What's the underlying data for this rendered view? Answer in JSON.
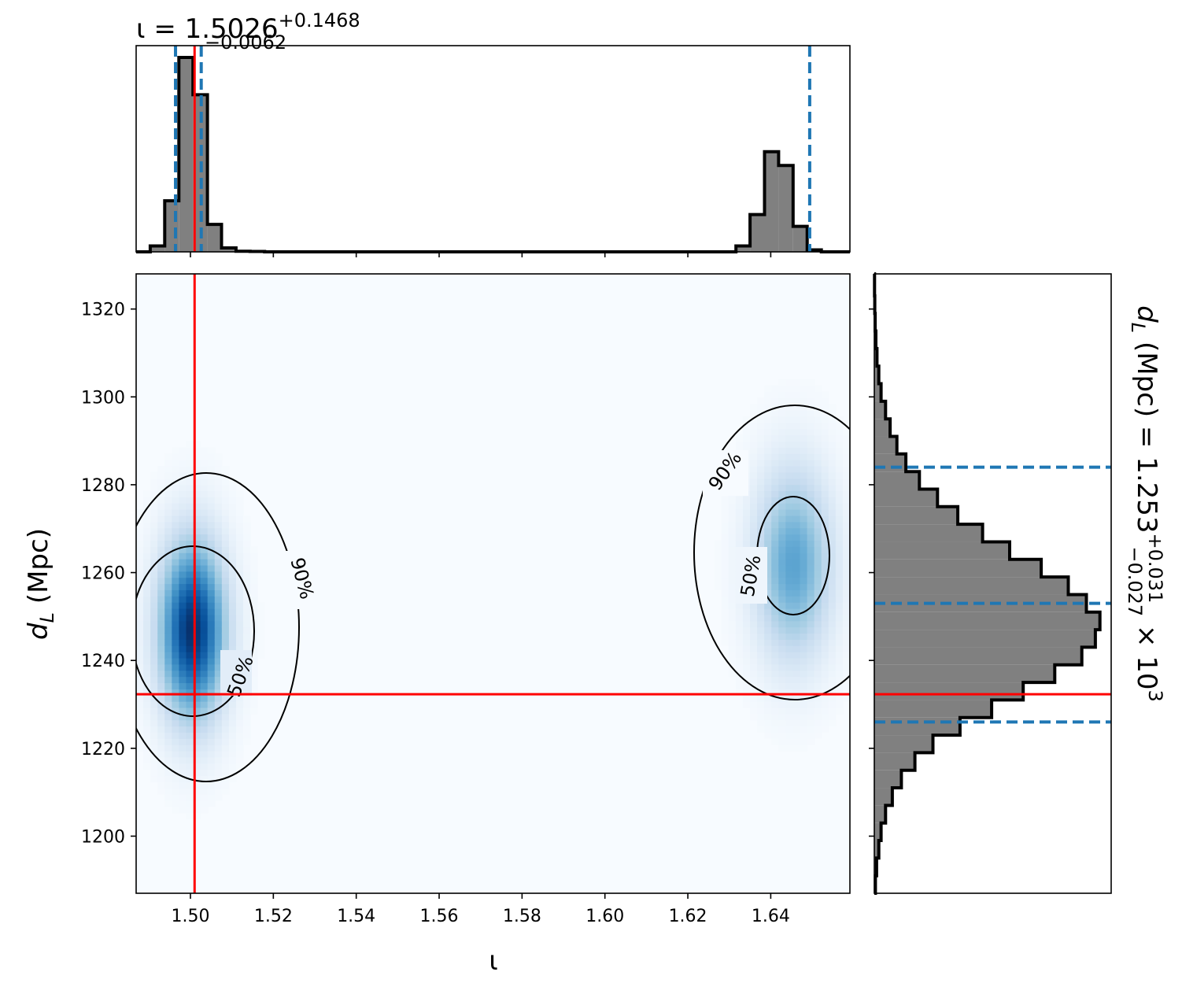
{
  "chart_data": {
    "type": "corner",
    "parameters": [
      {
        "name": "iota",
        "label_symbol": "ι",
        "label": "ι",
        "range": [
          1.4869,
          1.6591
        ]
      },
      {
        "name": "d_L",
        "label_base": "d",
        "label_sub": "L",
        "label_unit": " (Mpc)",
        "range": [
          1187,
          1328
        ]
      }
    ],
    "injection": {
      "iota": 1.501,
      "d_L": 1232.3
    },
    "marginal_iota": {
      "title_prefix": "ι = 1.5026",
      "title_sup": "+0.1468",
      "title_sub": "−0.0062",
      "bins_x": [
        1.4869,
        1.4903,
        1.4938,
        1.4972,
        1.5006,
        1.5041,
        1.5075,
        1.511,
        1.5144,
        1.5179,
        1.6281,
        1.6316,
        1.635,
        1.6385,
        1.6419,
        1.6454,
        1.6488,
        1.6522,
        1.6557,
        1.6591
      ],
      "heights": [
        0.0,
        0.03,
        0.26,
        0.99,
        0.8,
        0.14,
        0.02,
        0.003,
        0.002,
        0.0,
        0.0,
        0.03,
        0.19,
        0.51,
        0.44,
        0.13,
        0.01,
        0.0,
        0.0
      ],
      "quantiles": [
        1.4964,
        1.5026,
        1.6494
      ],
      "ylim": [
        0,
        1.05
      ]
    },
    "marginal_dL": {
      "title_prefix": "d",
      "title_sub_letter": "L",
      "title_middle": " (Mpc) = 1.253",
      "title_sup": "+0.031",
      "title_sub": "−0.027",
      "title_suffix": " × 10",
      "title_exp": "3",
      "bins_y": [
        1187,
        1191,
        1195,
        1199,
        1203,
        1207,
        1211,
        1215,
        1219,
        1223,
        1227,
        1231,
        1235,
        1239,
        1243,
        1247,
        1251,
        1255,
        1259,
        1263,
        1267,
        1271,
        1275,
        1279,
        1283,
        1287,
        1291,
        1295,
        1299,
        1303,
        1307,
        1311,
        1315,
        1319,
        1323,
        1328
      ],
      "heights": [
        0.005,
        0.01,
        0.02,
        0.03,
        0.05,
        0.08,
        0.12,
        0.18,
        0.26,
        0.38,
        0.52,
        0.66,
        0.8,
        0.92,
        0.98,
        1.0,
        0.94,
        0.86,
        0.74,
        0.6,
        0.48,
        0.37,
        0.28,
        0.2,
        0.14,
        0.1,
        0.07,
        0.05,
        0.03,
        0.02,
        0.012,
        0.007,
        0.004,
        0.002,
        0.001
      ],
      "quantiles": [
        1226,
        1253,
        1284
      ],
      "xlim": [
        0,
        1.05
      ]
    },
    "joint": {
      "type": "heatmap+contour",
      "colormap": "Blues",
      "modes": [
        {
          "iota": 1.5005,
          "d_L": 1247,
          "sigma_iota": 0.0055,
          "sigma_dL": 14,
          "weight": 1.0
        },
        {
          "iota": 1.6455,
          "d_L": 1262,
          "sigma_iota": 0.0065,
          "sigma_dL": 15,
          "weight": 0.55
        }
      ],
      "contour_labels": [
        "50%",
        "90%"
      ]
    },
    "xticks": [
      1.5,
      1.52,
      1.54,
      1.56,
      1.58,
      1.6,
      1.62,
      1.64
    ],
    "xtick_labels": [
      "1.50",
      "1.52",
      "1.54",
      "1.56",
      "1.58",
      "1.60",
      "1.62",
      "1.64"
    ],
    "yticks": [
      1200,
      1220,
      1240,
      1260,
      1280,
      1300,
      1320
    ],
    "ytick_labels": [
      "1200",
      "1220",
      "1240",
      "1260",
      "1280",
      "1300",
      "1320"
    ],
    "colors": {
      "injection": "#ff0000",
      "quantile": "#1f77b4",
      "hist_fill": "#808080",
      "hist_edge": "#000000"
    }
  }
}
